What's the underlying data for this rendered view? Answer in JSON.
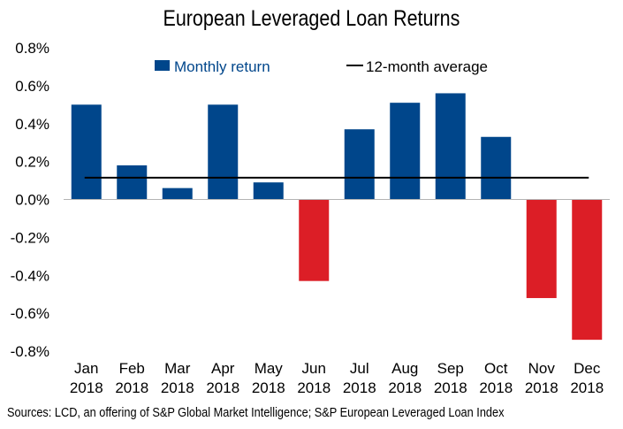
{
  "chart_data": {
    "type": "bar",
    "title": "European Leveraged Loan Returns",
    "categories": [
      [
        "Jan",
        "2018"
      ],
      [
        "Feb",
        "2018"
      ],
      [
        "Mar",
        "2018"
      ],
      [
        "Apr",
        "2018"
      ],
      [
        "May",
        "2018"
      ],
      [
        "Jun",
        "2018"
      ],
      [
        "Jul",
        "2018"
      ],
      [
        "Aug",
        "2018"
      ],
      [
        "Sep",
        "2018"
      ],
      [
        "Oct",
        "2018"
      ],
      [
        "Nov",
        "2018"
      ],
      [
        "Dec",
        "2018"
      ]
    ],
    "series": [
      {
        "name": "Monthly return",
        "values": [
          0.5,
          0.18,
          0.06,
          0.5,
          0.09,
          -0.43,
          0.37,
          0.51,
          0.56,
          0.33,
          -0.52,
          -0.74
        ]
      },
      {
        "name": "12-month average",
        "type": "line",
        "value": 0.115
      }
    ],
    "yticks": [
      "0.8%",
      "0.6%",
      "0.4%",
      "0.2%",
      "0.0%",
      "-0.2%",
      "-0.4%",
      "-0.6%",
      "-0.8%"
    ],
    "ylim": [
      -0.8,
      0.8
    ],
    "unit": "%",
    "grid": false,
    "legend_position": "top",
    "colors": {
      "positive": "#00468b",
      "negative": "#dc1e26",
      "average_line": "#000000"
    }
  },
  "source": "Sources: LCD, an offering of S&P Global Market Intelligence; S&P European Leveraged Loan Index"
}
